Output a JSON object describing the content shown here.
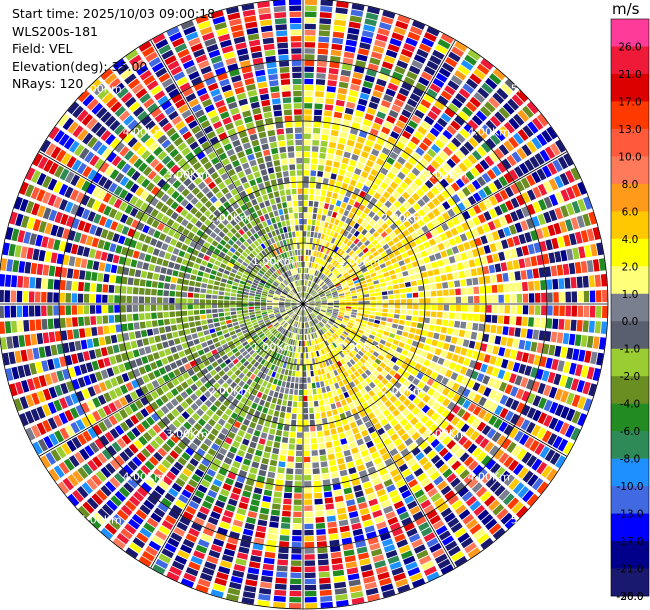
{
  "header": {
    "start_time": "Start time: 2025/10/03 09:00:18",
    "instrument": "WLS200s-181",
    "field": "Field: VEL",
    "elevation": "Elevation(deg): 35.00",
    "nrays": "NRays: 120"
  },
  "colorbar": {
    "unit": "m/s",
    "bins": [
      {
        "label": "26.0",
        "color": "#ff3b9a"
      },
      {
        "label": "21.0",
        "color": "#ee1a38"
      },
      {
        "label": "17.0",
        "color": "#dd0000"
      },
      {
        "label": "13.0",
        "color": "#ff3a00"
      },
      {
        "label": "10.0",
        "color": "#ff5a3c"
      },
      {
        "label": "8.0",
        "color": "#ff7a5a"
      },
      {
        "label": "6.0",
        "color": "#ff9a1a"
      },
      {
        "label": "4.0",
        "color": "#ffc800"
      },
      {
        "label": "2.0",
        "color": "#ffff00"
      },
      {
        "label": "1.0",
        "color": "#ffff7a"
      },
      {
        "label": "0.0",
        "color": "#7a7f90"
      },
      {
        "label": "-1.0",
        "color": "#5a5f6f"
      },
      {
        "label": "-2.0",
        "color": "#9acd32"
      },
      {
        "label": "-4.0",
        "color": "#6b8e23"
      },
      {
        "label": "-6.0",
        "color": "#228b22"
      },
      {
        "label": "-8.0",
        "color": "#2e8b57"
      },
      {
        "label": "-10.0",
        "color": "#1e90ff"
      },
      {
        "label": "-13.0",
        "color": "#4169e1"
      },
      {
        "label": "-17.0",
        "color": "#0000ff"
      },
      {
        "label": "-21.0",
        "color": "#00008b"
      },
      {
        "label": "-26.0",
        "color": "#191970"
      },
      {
        "label": "-30.0",
        "color": ""
      }
    ]
  },
  "chart_data": {
    "type": "heatmap",
    "projection": "polar PPI",
    "field": "VEL",
    "nrays": 120,
    "max_range_km": 5.0,
    "ring_labels": [
      "1.00Km",
      "2.00Km",
      "3.00Km",
      "4.00Km",
      "5.00Km"
    ],
    "range_rings_km": [
      1,
      2,
      3,
      4,
      5
    ],
    "spokes_deg": [
      0,
      30,
      60,
      90,
      120,
      150
    ],
    "regions": [
      {
        "description": "near-field ring",
        "range_km": [
          0,
          1.2
        ],
        "values_ms": [
          0,
          -1,
          -2
        ]
      },
      {
        "description": "east sector",
        "azimuth_deg": [
          20,
          160
        ],
        "range_km": [
          0.3,
          3.0
        ],
        "values_ms": [
          1,
          2,
          4
        ]
      },
      {
        "description": "west sector",
        "azimuth_deg": [
          200,
          340
        ],
        "range_km": [
          0.3,
          3.0
        ],
        "values_ms": [
          -2,
          -4,
          -6,
          -1
        ]
      },
      {
        "description": "noise far field",
        "range_km": [
          3.0,
          5.0
        ],
        "values_ms": "mixed -30..26"
      }
    ]
  }
}
